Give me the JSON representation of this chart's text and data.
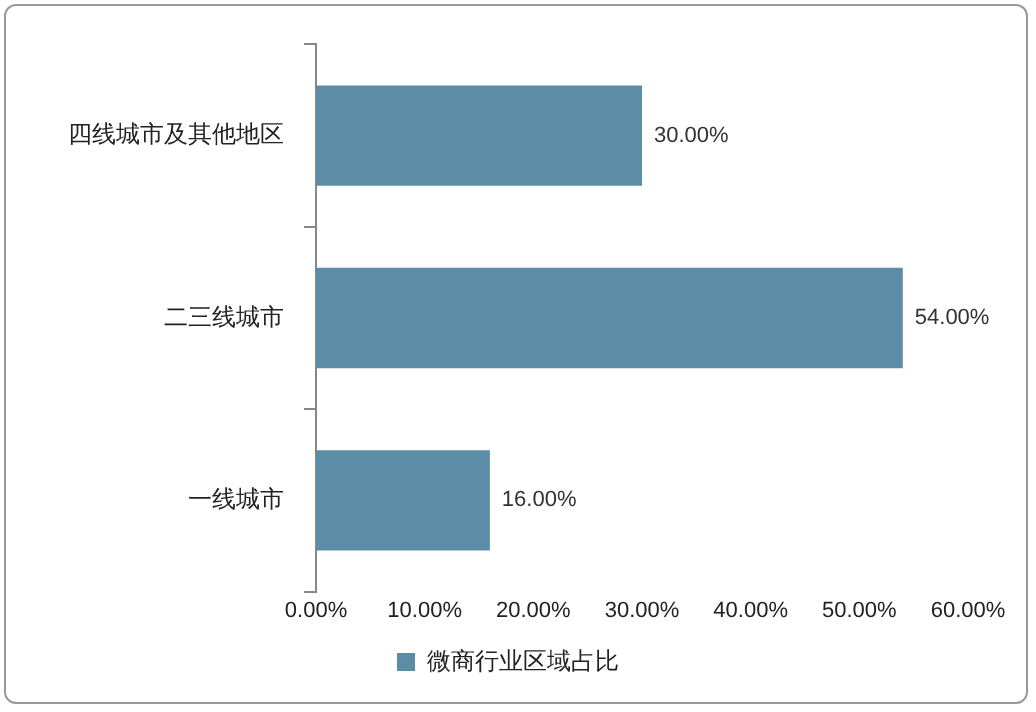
{
  "chart_data": {
    "type": "bar",
    "orientation": "horizontal",
    "categories": [
      "四线城市及其他地区",
      "二三线城市",
      "一线城市"
    ],
    "series": [
      {
        "name": "微商行业区域占比",
        "color": "#5b8ea6",
        "values": [
          30,
          54,
          16
        ],
        "value_labels": [
          "30.00%",
          "54.00%",
          "16.00%"
        ]
      }
    ],
    "xlim": [
      0,
      60
    ],
    "xticks": [
      {
        "value": 0,
        "label": "0.00%"
      },
      {
        "value": 10,
        "label": "10.00%"
      },
      {
        "value": 20,
        "label": "20.00%"
      },
      {
        "value": 30,
        "label": "30.00%"
      },
      {
        "value": 40,
        "label": "40.00%"
      },
      {
        "value": 50,
        "label": "50.00%"
      },
      {
        "value": 60,
        "label": "60.00%"
      }
    ],
    "grid": false,
    "legend": "bottom"
  }
}
